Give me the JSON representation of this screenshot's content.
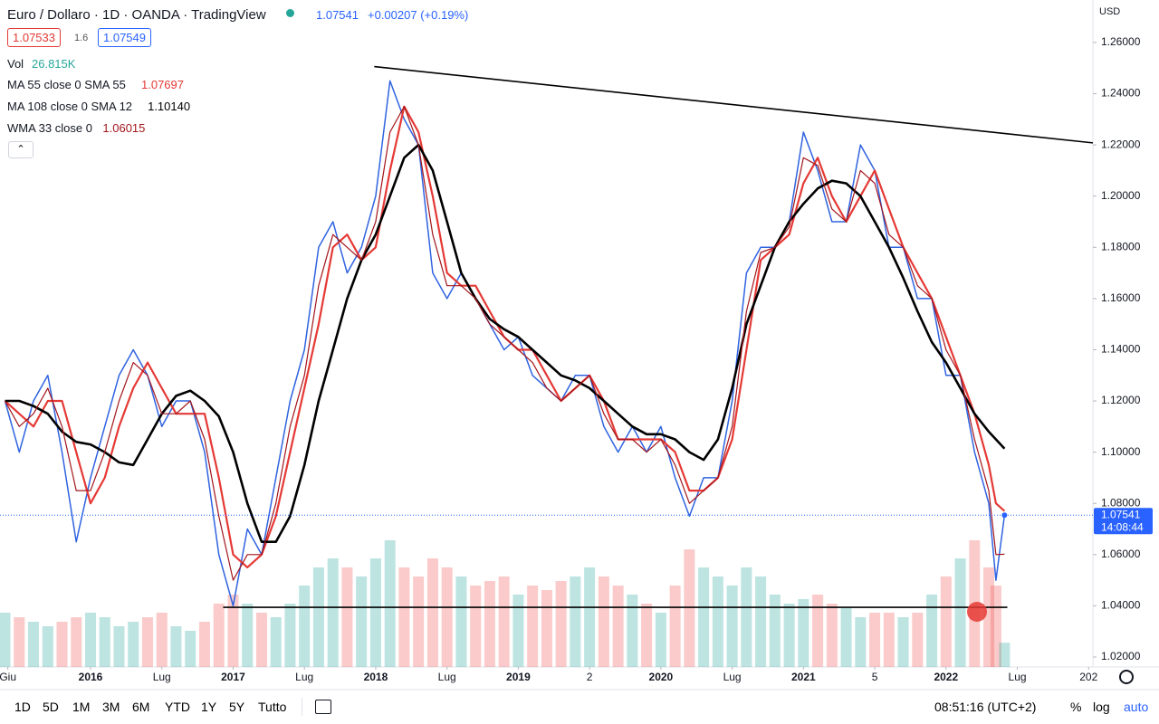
{
  "header": {
    "title": "Euro / Dollaro · 1D · OANDA · TradingView",
    "price": "1.07541",
    "change": "+0.00207 (+0.19%)",
    "sell": "1.07533",
    "spread": "1.6",
    "buy": "1.07549",
    "vol_label": "Vol",
    "vol_value": "26.815K",
    "currency": "USD"
  },
  "toolbar": {
    "ranges": [
      "1D",
      "5D",
      "1M",
      "3M",
      "6M",
      "YTD",
      "1Y",
      "5Y",
      "Tutto"
    ],
    "clock": "08:51:16 (UTC+2)",
    "percent": "%",
    "log": "log",
    "auto": "auto"
  },
  "chart_data": {
    "type": "line",
    "xlim": [
      2015.365,
      2023.03
    ],
    "ylim": [
      1.0161,
      1.2766
    ],
    "xticks": [
      {
        "value": 2015.42,
        "label": "Giu"
      },
      2016,
      {
        "value": 2016.5,
        "label": "Lug"
      },
      2017,
      {
        "value": 2017.5,
        "label": "Lug"
      },
      2018,
      {
        "value": 2018.5,
        "label": "Lug"
      },
      2019,
      {
        "value": 2019.5,
        "label": "2"
      },
      2020,
      {
        "value": 2020.5,
        "label": "Lug"
      },
      2021,
      {
        "value": 2021.5,
        "label": "5"
      },
      2022,
      {
        "value": 2022.5,
        "label": "Lug"
      },
      {
        "value": 2023,
        "label": "202"
      }
    ],
    "yticks": [
      {
        "value": 1.02,
        "label": "1.02000"
      },
      {
        "value": 1.04,
        "label": "1.04000"
      },
      {
        "value": 1.06,
        "label": "1.06000"
      },
      {
        "value": 1.08,
        "label": "1.08000"
      },
      {
        "value": 1.1,
        "label": "1.10000"
      },
      {
        "value": 1.12,
        "label": "1.12000"
      },
      {
        "value": 1.14,
        "label": "1.14000"
      },
      {
        "value": 1.16,
        "label": "1.16000"
      },
      {
        "value": 1.18,
        "label": "1.18000"
      },
      {
        "value": 1.2,
        "label": "1.20000"
      },
      {
        "value": 1.22,
        "label": "1.22000"
      },
      {
        "value": 1.24,
        "label": "1.24000"
      },
      {
        "value": 1.26,
        "label": "1.26000"
      }
    ],
    "grid": false,
    "x": [
      2015.4,
      2015.5,
      2015.6,
      2015.7,
      2015.8,
      2015.9,
      2016.0,
      2016.1,
      2016.2,
      2016.3,
      2016.4,
      2016.5,
      2016.6,
      2016.7,
      2016.8,
      2016.9,
      2017.0,
      2017.1,
      2017.2,
      2017.3,
      2017.4,
      2017.5,
      2017.6,
      2017.7,
      2017.8,
      2017.9,
      2018.0,
      2018.1,
      2018.2,
      2018.3,
      2018.4,
      2018.5,
      2018.6,
      2018.7,
      2018.8,
      2018.9,
      2019.0,
      2019.1,
      2019.2,
      2019.3,
      2019.4,
      2019.5,
      2019.6,
      2019.7,
      2019.8,
      2019.9,
      2020.0,
      2020.1,
      2020.2,
      2020.3,
      2020.4,
      2020.5,
      2020.6,
      2020.7,
      2020.8,
      2020.9,
      2021.0,
      2021.1,
      2021.2,
      2021.3,
      2021.4,
      2021.5,
      2021.6,
      2021.7,
      2021.8,
      2021.9,
      2022.0,
      2022.1,
      2022.2,
      2022.3,
      2022.35,
      2022.41
    ],
    "color": "#2f63e0",
    "values": [
      1.12,
      1.1,
      1.12,
      1.13,
      1.1,
      1.065,
      1.09,
      1.11,
      1.13,
      1.14,
      1.13,
      1.11,
      1.12,
      1.12,
      1.1,
      1.06,
      1.04,
      1.07,
      1.06,
      1.09,
      1.12,
      1.14,
      1.18,
      1.19,
      1.17,
      1.18,
      1.2,
      1.245,
      1.23,
      1.22,
      1.17,
      1.16,
      1.17,
      1.16,
      1.15,
      1.14,
      1.145,
      1.13,
      1.125,
      1.12,
      1.13,
      1.13,
      1.11,
      1.1,
      1.11,
      1.1,
      1.11,
      1.09,
      1.075,
      1.09,
      1.09,
      1.12,
      1.17,
      1.18,
      1.18,
      1.19,
      1.225,
      1.21,
      1.19,
      1.19,
      1.22,
      1.21,
      1.18,
      1.18,
      1.16,
      1.16,
      1.13,
      1.13,
      1.1,
      1.08,
      1.05,
      1.0754
    ],
    "series": [
      {
        "name": "MA 55 close 0 SMA 55",
        "last_label": "1.07697",
        "color": "#e53935",
        "width": 2.2,
        "values": [
          1.12,
          1.115,
          1.11,
          1.12,
          1.12,
          1.1,
          1.08,
          1.09,
          1.11,
          1.125,
          1.135,
          1.125,
          1.115,
          1.115,
          1.115,
          1.09,
          1.06,
          1.055,
          1.06,
          1.075,
          1.1,
          1.125,
          1.15,
          1.18,
          1.185,
          1.175,
          1.18,
          1.21,
          1.235,
          1.225,
          1.2,
          1.17,
          1.165,
          1.165,
          1.155,
          1.145,
          1.14,
          1.14,
          1.13,
          1.12,
          1.125,
          1.13,
          1.12,
          1.105,
          1.105,
          1.105,
          1.105,
          1.1,
          1.085,
          1.085,
          1.09,
          1.105,
          1.14,
          1.175,
          1.18,
          1.185,
          1.205,
          1.215,
          1.2,
          1.19,
          1.2,
          1.21,
          1.195,
          1.18,
          1.17,
          1.16,
          1.145,
          1.13,
          1.115,
          1.095,
          1.08,
          1.077
        ]
      },
      {
        "name": "MA 108 close 0 SMA 12",
        "last_label": "1.10140",
        "color": "#000000",
        "width": 2.6,
        "values": [
          1.12,
          1.12,
          1.118,
          1.115,
          1.108,
          1.104,
          1.103,
          1.1,
          1.096,
          1.095,
          1.105,
          1.115,
          1.122,
          1.124,
          1.12,
          1.114,
          1.1,
          1.08,
          1.065,
          1.065,
          1.075,
          1.095,
          1.12,
          1.14,
          1.16,
          1.175,
          1.185,
          1.2,
          1.215,
          1.22,
          1.21,
          1.19,
          1.17,
          1.16,
          1.152,
          1.148,
          1.145,
          1.14,
          1.135,
          1.13,
          1.128,
          1.125,
          1.12,
          1.115,
          1.11,
          1.107,
          1.107,
          1.105,
          1.1,
          1.097,
          1.105,
          1.125,
          1.15,
          1.165,
          1.18,
          1.19,
          1.197,
          1.203,
          1.206,
          1.205,
          1.2,
          1.19,
          1.18,
          1.168,
          1.155,
          1.143,
          1.135,
          1.125,
          1.115,
          1.108,
          1.105,
          1.1014
        ]
      },
      {
        "name": "WMA 33 close 0",
        "last_label": "1.06015",
        "color": "#a3161c",
        "width": 1.2,
        "values": [
          1.12,
          1.11,
          1.115,
          1.125,
          1.11,
          1.085,
          1.085,
          1.1,
          1.12,
          1.135,
          1.13,
          1.115,
          1.115,
          1.12,
          1.105,
          1.075,
          1.05,
          1.06,
          1.06,
          1.08,
          1.11,
          1.13,
          1.165,
          1.185,
          1.18,
          1.175,
          1.19,
          1.225,
          1.235,
          1.22,
          1.185,
          1.165,
          1.165,
          1.16,
          1.15,
          1.145,
          1.14,
          1.135,
          1.125,
          1.12,
          1.125,
          1.13,
          1.115,
          1.105,
          1.105,
          1.1,
          1.105,
          1.095,
          1.08,
          1.085,
          1.09,
          1.11,
          1.155,
          1.178,
          1.18,
          1.188,
          1.215,
          1.212,
          1.195,
          1.19,
          1.21,
          1.205,
          1.185,
          1.18,
          1.165,
          1.16,
          1.14,
          1.13,
          1.105,
          1.085,
          1.06,
          1.06015
        ]
      }
    ],
    "volume": [
      60,
      55,
      50,
      45,
      50,
      55,
      60,
      55,
      45,
      50,
      55,
      60,
      45,
      40,
      50,
      70,
      80,
      70,
      60,
      55,
      70,
      90,
      110,
      120,
      110,
      100,
      120,
      140,
      110,
      100,
      120,
      110,
      100,
      90,
      95,
      100,
      80,
      90,
      85,
      95,
      100,
      110,
      100,
      90,
      80,
      70,
      60,
      90,
      130,
      110,
      100,
      90,
      110,
      100,
      80,
      70,
      75,
      80,
      70,
      65,
      55,
      60,
      60,
      55,
      60,
      80,
      100,
      120,
      140,
      110,
      90,
      26.815
    ],
    "trendlines": [
      {
        "x": [
          2017.99,
          2023.03
        ],
        "y": [
          1.2506,
          1.2208
        ]
      },
      {
        "x": [
          2016.93,
          2022.43
        ],
        "y": [
          1.0394,
          1.0394
        ]
      }
    ],
    "last_value": {
      "value": 1.07541,
      "label": "1.07541"
    },
    "countdown": "14:08:44"
  }
}
